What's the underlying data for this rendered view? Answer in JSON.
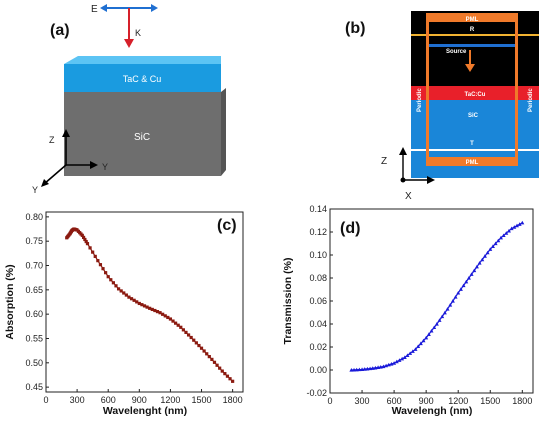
{
  "panels": {
    "a": "(a)",
    "b": "(b)",
    "c": "(c)",
    "d": "(d)"
  },
  "diagram_a": {
    "field_label": "E",
    "wave_label": "K",
    "top_layer": "TaC & Cu",
    "substrate": "SiC",
    "axes": [
      "Z",
      "Y",
      "Y"
    ],
    "colors": {
      "top_layer": "#1a9be0",
      "substrate": "#6e6e6e",
      "arrow_e": "#1f6fd1",
      "arrow_k": "#d6202a"
    }
  },
  "diagram_b": {
    "pml_top": "PML",
    "monitor_r": "R",
    "source": "Source",
    "periodic_left": "Periodic",
    "periodic_right": "Periodic",
    "layer": "TaC:Cu",
    "substrate": "SiC",
    "monitor_t": "T",
    "pml_bottom": "PML",
    "axes": [
      "Z",
      "X"
    ],
    "colors": {
      "background": "#000000",
      "pml": "#f07a2a",
      "substrate": "#1a86d8",
      "layer": "#e8202a",
      "monitor": "#f2b331"
    }
  },
  "chart_data": [
    {
      "panel": "c",
      "type": "line",
      "xlabel": "Wavelenght (nm)",
      "ylabel": "Absorption (%)",
      "xlim": [
        0,
        1900
      ],
      "ylim": [
        0.44,
        0.81
      ],
      "xticks": [
        "0",
        "300",
        "600",
        "900",
        "1200",
        "1500",
        "1800"
      ],
      "yticks": [
        "0.45",
        "0.50",
        "0.55",
        "0.60",
        "0.65",
        "0.70",
        "0.75",
        "0.80"
      ],
      "series_color": "#8b1a10",
      "x": [
        200,
        230,
        250,
        270,
        300,
        350,
        400,
        500,
        600,
        700,
        800,
        900,
        1000,
        1100,
        1200,
        1300,
        1400,
        1500,
        1600,
        1700,
        1800
      ],
      "y": [
        0.757,
        0.765,
        0.772,
        0.775,
        0.773,
        0.762,
        0.745,
        0.71,
        0.677,
        0.652,
        0.635,
        0.622,
        0.612,
        0.603,
        0.59,
        0.573,
        0.552,
        0.53,
        0.507,
        0.483,
        0.462
      ]
    },
    {
      "panel": "d",
      "type": "line",
      "xlabel": "Wavelengh (nm)",
      "ylabel": "Transmission (%)",
      "xlim": [
        0,
        1900
      ],
      "ylim": [
        -0.02,
        0.14
      ],
      "xticks": [
        "0",
        "300",
        "600",
        "900",
        "1200",
        "1500",
        "1800"
      ],
      "yticks": [
        "-0.02",
        "0.00",
        "0.02",
        "0.04",
        "0.06",
        "0.08",
        "0.10",
        "0.12",
        "0.14"
      ],
      "series_color": "#1a1ad9",
      "x": [
        200,
        300,
        400,
        500,
        600,
        700,
        800,
        900,
        1000,
        1100,
        1200,
        1300,
        1400,
        1500,
        1600,
        1700,
        1800
      ],
      "y": [
        0.0,
        0.0005,
        0.0015,
        0.003,
        0.006,
        0.011,
        0.018,
        0.028,
        0.04,
        0.053,
        0.067,
        0.08,
        0.093,
        0.105,
        0.115,
        0.123,
        0.128
      ]
    }
  ]
}
